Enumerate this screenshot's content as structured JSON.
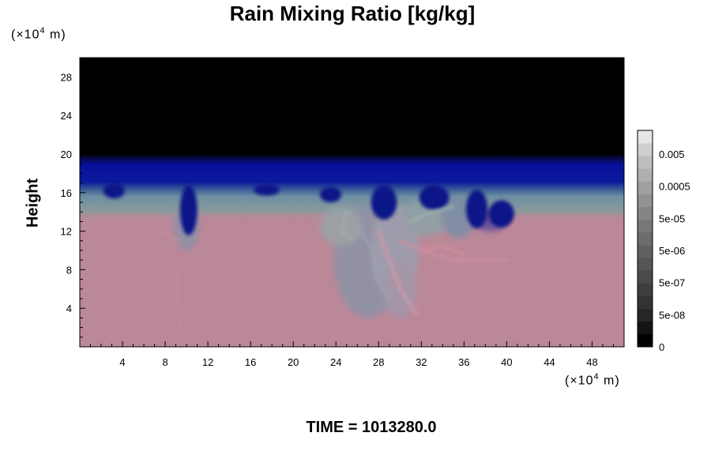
{
  "chart_data": {
    "type": "heatmap",
    "title": "Rain Mixing Ratio [kg/kg]",
    "ylabel": "Height",
    "y_unit_prefix": "(×10",
    "y_unit_exp": "4",
    "y_unit_suffix": " m)",
    "x_unit_prefix": "(×10",
    "x_unit_exp": "4",
    "x_unit_suffix": " m)",
    "xlim": [
      0,
      51
    ],
    "ylim": [
      0,
      30
    ],
    "x_ticks": [
      4,
      8,
      12,
      16,
      20,
      24,
      28,
      32,
      36,
      40,
      44,
      48
    ],
    "y_ticks": [
      4,
      8,
      12,
      16,
      20,
      24,
      28
    ],
    "x_minor_step": 1,
    "y_minor_step": 1,
    "colorbar": {
      "labels": [
        "0",
        "5e-08",
        "5e-07",
        "5e-06",
        "5e-05",
        "0.0005",
        "0.005"
      ],
      "colors": [
        "#000000",
        "#141414",
        "#262626",
        "#333333",
        "#3e3e3e",
        "#4a4a4a",
        "#555555",
        "#606060",
        "#6c6c6c",
        "#787878",
        "#858585",
        "#929292",
        "#a0a0a0",
        "#afafaf",
        "#bebebe",
        "#cfcfcf",
        "#e6e6e6"
      ]
    },
    "regions": {
      "black_above_height": 20,
      "blue_band": [
        16.5,
        20
      ],
      "gray_band": [
        13.5,
        16.5
      ],
      "pink_below_height": 13.5,
      "colors": {
        "top": "#000000",
        "blue": "#08108c",
        "gray": "#869c9a",
        "pink": "#bb8898"
      }
    },
    "time_label": "TIME = 1013280.0"
  }
}
